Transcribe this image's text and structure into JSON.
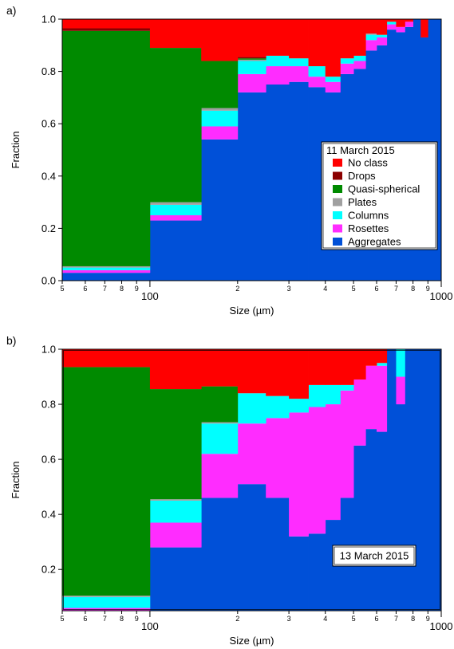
{
  "chart_data": [
    {
      "panel_label": "a)",
      "type": "area",
      "stacking": "stacked-step",
      "xscale": "log",
      "xlabel": "Size (µm)",
      "ylabel": "Fraction",
      "xlim": [
        50,
        1000
      ],
      "ylim": [
        0,
        1
      ],
      "x_ticks_major": [
        {
          "v": 100,
          "label": "100"
        },
        {
          "v": 1000,
          "label": "1000"
        }
      ],
      "x_ticks_minor": [
        {
          "v": 50,
          "label": "5"
        },
        {
          "v": 60,
          "label": "6"
        },
        {
          "v": 70,
          "label": "7"
        },
        {
          "v": 80,
          "label": "8"
        },
        {
          "v": 90,
          "label": "9"
        },
        {
          "v": 200,
          "label": "2"
        },
        {
          "v": 300,
          "label": "3"
        },
        {
          "v": 400,
          "label": "4"
        },
        {
          "v": 500,
          "label": "5"
        },
        {
          "v": 600,
          "label": "6"
        },
        {
          "v": 700,
          "label": "7"
        },
        {
          "v": 800,
          "label": "8"
        },
        {
          "v": 900,
          "label": "9"
        }
      ],
      "y_ticks": [
        {
          "v": 0,
          "label": "0.0"
        },
        {
          "v": 0.2,
          "label": "0.2"
        },
        {
          "v": 0.4,
          "label": "0.4"
        },
        {
          "v": 0.6,
          "label": "0.6"
        },
        {
          "v": 0.8,
          "label": "0.8"
        },
        {
          "v": 1.0,
          "label": "1.0"
        }
      ],
      "legend": {
        "title": "11 March 2015",
        "position": "right",
        "entries": [
          "No class",
          "Drops",
          "Quasi-spherical",
          "Plates",
          "Columns",
          "Rosettes",
          "Aggregates"
        ]
      },
      "bin_edges": [
        50,
        100,
        150,
        200,
        250,
        300,
        350,
        400,
        450,
        500,
        550,
        600,
        650,
        700,
        750,
        800,
        850,
        900,
        950,
        1000
      ],
      "series": [
        {
          "name": "Aggregates",
          "color": "#0050d8",
          "values": [
            0.03,
            0.23,
            0.54,
            0.72,
            0.75,
            0.76,
            0.74,
            0.72,
            0.79,
            0.81,
            0.88,
            0.9,
            0.96,
            0.95,
            0.97,
            1.0,
            0.93,
            1.0,
            1.0
          ]
        },
        {
          "name": "Rosettes",
          "color": "#ff2cff",
          "values": [
            0.01,
            0.02,
            0.05,
            0.07,
            0.07,
            0.06,
            0.04,
            0.04,
            0.04,
            0.03,
            0.04,
            0.03,
            0.02,
            0.02,
            0.02,
            0.0,
            0.0,
            0.0,
            0.0
          ]
        },
        {
          "name": "Columns",
          "color": "#00ffff",
          "values": [
            0.01,
            0.04,
            0.06,
            0.05,
            0.04,
            0.03,
            0.04,
            0.02,
            0.02,
            0.02,
            0.02,
            0.01,
            0.01,
            0.0,
            0.0,
            0.0,
            0.0,
            0.0,
            0.0
          ]
        },
        {
          "name": "Plates",
          "color": "#a0a0a0",
          "values": [
            0.005,
            0.01,
            0.01,
            0.005,
            0.0,
            0.0,
            0.0,
            0.0,
            0.0,
            0.0,
            0.005,
            0.0,
            0.0,
            0.0,
            0.0,
            0.0,
            0.0,
            0.0,
            0.0
          ]
        },
        {
          "name": "Quasi-spherical",
          "color": "#008a00",
          "values": [
            0.9,
            0.59,
            0.18,
            0.005,
            0.0,
            0.0,
            0.0,
            0.0,
            0.0,
            0.0,
            0.0,
            0.0,
            0.0,
            0.0,
            0.0,
            0.0,
            0.0,
            0.0,
            0.0
          ]
        },
        {
          "name": "Drops",
          "color": "#8b0000",
          "values": [
            0.01,
            0.0,
            0.0,
            0.005,
            0.0,
            0.0,
            0.0,
            0.0,
            0.0,
            0.0,
            0.0,
            0.0,
            0.0,
            0.0,
            0.0,
            0.0,
            0.0,
            0.0,
            0.0
          ]
        },
        {
          "name": "No class",
          "color": "#ff0000",
          "values": [
            0.035,
            0.11,
            0.16,
            0.145,
            0.14,
            0.15,
            0.18,
            0.22,
            0.15,
            0.14,
            0.055,
            0.06,
            0.01,
            0.03,
            0.01,
            0.0,
            0.07,
            0.0,
            0.0
          ]
        }
      ]
    },
    {
      "panel_label": "b)",
      "type": "area",
      "stacking": "stacked-step",
      "xscale": "log",
      "xlabel": "Size (µm)",
      "ylabel": "Fraction",
      "xlim": [
        50,
        1000
      ],
      "ylim": [
        0.05,
        1
      ],
      "x_ticks_major": [
        {
          "v": 100,
          "label": "100"
        },
        {
          "v": 1000,
          "label": "1000"
        }
      ],
      "x_ticks_minor": [
        {
          "v": 50,
          "label": "5"
        },
        {
          "v": 60,
          "label": "6"
        },
        {
          "v": 70,
          "label": "7"
        },
        {
          "v": 80,
          "label": "8"
        },
        {
          "v": 90,
          "label": "9"
        },
        {
          "v": 200,
          "label": "2"
        },
        {
          "v": 300,
          "label": "3"
        },
        {
          "v": 400,
          "label": "4"
        },
        {
          "v": 500,
          "label": "5"
        },
        {
          "v": 600,
          "label": "6"
        },
        {
          "v": 700,
          "label": "7"
        },
        {
          "v": 800,
          "label": "8"
        },
        {
          "v": 900,
          "label": "9"
        }
      ],
      "y_ticks": [
        {
          "v": 0.2,
          "label": "0.2"
        },
        {
          "v": 0.4,
          "label": "0.4"
        },
        {
          "v": 0.6,
          "label": "0.6"
        },
        {
          "v": 0.8,
          "label": "0.8"
        },
        {
          "v": 1.0,
          "label": "1.0"
        }
      ],
      "annotation": "13 March 2015",
      "bin_edges": [
        50,
        100,
        150,
        200,
        250,
        300,
        350,
        400,
        450,
        500,
        550,
        600,
        650,
        700,
        750,
        800,
        850,
        900,
        950,
        1000
      ],
      "series": [
        {
          "name": "Aggregates",
          "color": "#0050d8",
          "values": [
            0.05,
            0.28,
            0.46,
            0.51,
            0.46,
            0.32,
            0.33,
            0.38,
            0.46,
            0.65,
            0.71,
            0.7,
            1.0,
            0.8,
            1.0,
            1.0,
            1.0,
            1.0,
            1.0
          ]
        },
        {
          "name": "Rosettes",
          "color": "#ff2cff",
          "values": [
            0.01,
            0.09,
            0.16,
            0.22,
            0.29,
            0.45,
            0.46,
            0.42,
            0.39,
            0.24,
            0.23,
            0.24,
            0.0,
            0.1,
            0.0,
            0.0,
            0.0,
            0.0,
            0.0
          ]
        },
        {
          "name": "Columns",
          "color": "#00ffff",
          "values": [
            0.04,
            0.08,
            0.11,
            0.11,
            0.08,
            0.05,
            0.08,
            0.07,
            0.02,
            0.0,
            0.0,
            0.01,
            0.0,
            0.1,
            0.0,
            0.0,
            0.0,
            0.0,
            0.0
          ]
        },
        {
          "name": "Plates",
          "color": "#a0a0a0",
          "values": [
            0.005,
            0.005,
            0.005,
            0.0,
            0.0,
            0.0,
            0.0,
            0.0,
            0.0,
            0.0,
            0.0,
            0.0,
            0.0,
            0.0,
            0.0,
            0.0,
            0.0,
            0.0,
            0.0
          ]
        },
        {
          "name": "Quasi-spherical",
          "color": "#008a00",
          "values": [
            0.83,
            0.4,
            0.13,
            0.0,
            0.0,
            0.0,
            0.0,
            0.0,
            0.0,
            0.0,
            0.0,
            0.0,
            0.0,
            0.0,
            0.0,
            0.0,
            0.0,
            0.0,
            0.0
          ]
        },
        {
          "name": "Drops",
          "color": "#8b0000",
          "values": [
            0.0,
            0.0,
            0.0,
            0.0,
            0.0,
            0.0,
            0.0,
            0.0,
            0.0,
            0.0,
            0.0,
            0.0,
            0.0,
            0.0,
            0.0,
            0.0,
            0.0,
            0.0,
            0.0
          ]
        },
        {
          "name": "No class",
          "color": "#ff0000",
          "values": [
            0.065,
            0.145,
            0.135,
            0.16,
            0.17,
            0.18,
            0.13,
            0.13,
            0.13,
            0.11,
            0.06,
            0.05,
            0.0,
            0.0,
            0.0,
            0.0,
            0.0,
            0.0,
            0.0
          ]
        }
      ]
    }
  ]
}
